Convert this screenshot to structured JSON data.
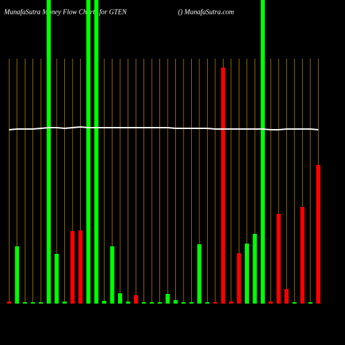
{
  "chart_data": {
    "type": "bar",
    "title": "MunafaSutra  Money Flow  Charts for GTEN",
    "subtitle": "() MunafaSutra.com",
    "categories": [
      null,
      null,
      null,
      null,
      null,
      null,
      null,
      null,
      null,
      null,
      null,
      null,
      null,
      null,
      null,
      null,
      null,
      null,
      null,
      null,
      null,
      null,
      null,
      null,
      null,
      null,
      null,
      null,
      null,
      null,
      null,
      null,
      null,
      null,
      null,
      null,
      null,
      null,
      null,
      null
    ],
    "values": [
      3,
      83,
      2,
      2,
      2,
      460,
      72,
      3,
      105,
      106,
      460,
      460,
      4,
      83,
      15,
      3,
      12,
      2,
      2,
      2,
      14,
      5,
      2,
      2,
      86,
      2,
      2,
      342,
      3,
      73,
      87,
      101,
      460,
      3,
      130,
      21,
      2,
      140,
      2,
      201
    ],
    "colors": [
      "#ff0000",
      "#00ff00",
      "#00ff00",
      "#00ff00",
      "#00ff00",
      "#00ff00",
      "#00ff00",
      "#00ff00",
      "#ff0000",
      "#ff0000",
      "#00ff00",
      "#00ff00",
      "#00ff00",
      "#00ff00",
      "#00ff00",
      "#00ff00",
      "#ff0000",
      "#00ff00",
      "#00ff00",
      "#00ff00",
      "#00ff00",
      "#00ff00",
      "#00ff00",
      "#00ff00",
      "#00ff00",
      "#00ff00",
      "#ff0000",
      "#ff0000",
      "#ff0000",
      "#ff0000",
      "#00ff00",
      "#00ff00",
      "#00ff00",
      "#ff0000",
      "#ff0000",
      "#ff0000",
      "#00ff00",
      "#ff0000",
      "#00ff00",
      "#ff0000"
    ],
    "line": {
      "type": "line",
      "color": "#ffffff",
      "values": [
        252,
        253,
        253,
        253,
        254,
        255,
        255,
        254,
        255,
        256,
        255,
        255,
        255,
        255,
        255,
        255,
        255,
        255,
        255,
        255,
        255,
        254,
        254,
        254,
        254,
        254,
        253,
        253,
        253,
        253,
        253,
        253,
        253,
        252,
        252,
        253,
        253,
        253,
        253,
        252
      ]
    },
    "ylim": [
      0,
      440
    ]
  }
}
